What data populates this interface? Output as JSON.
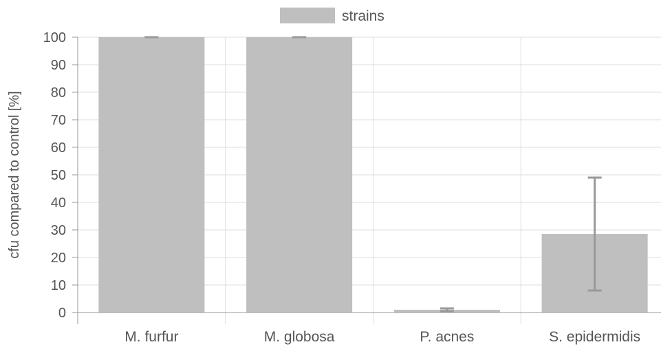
{
  "chart_data": {
    "type": "bar",
    "categories": [
      "M. furfur",
      "M. globosa",
      "P. acnes",
      "S. epidermidis"
    ],
    "series": [
      {
        "name": "strains",
        "values": [
          100,
          100,
          1,
          28.5
        ],
        "error_low": [
          100,
          100,
          0.5,
          8
        ],
        "error_high": [
          100,
          100,
          1.5,
          49
        ],
        "color": "#bfbfbf"
      }
    ],
    "ylabel": "cfu compared to control [%]",
    "xlabel": "",
    "ylim": [
      0,
      100
    ],
    "yticks": [
      "0",
      "10",
      "20",
      "30",
      "40",
      "50",
      "60",
      "70",
      "80",
      "90",
      "100"
    ],
    "grid": true,
    "legend_position": "top-center",
    "colors": {
      "grid": "#dddddd",
      "axis": "#999999",
      "error_bar": "#999999",
      "text": "#555555"
    }
  }
}
